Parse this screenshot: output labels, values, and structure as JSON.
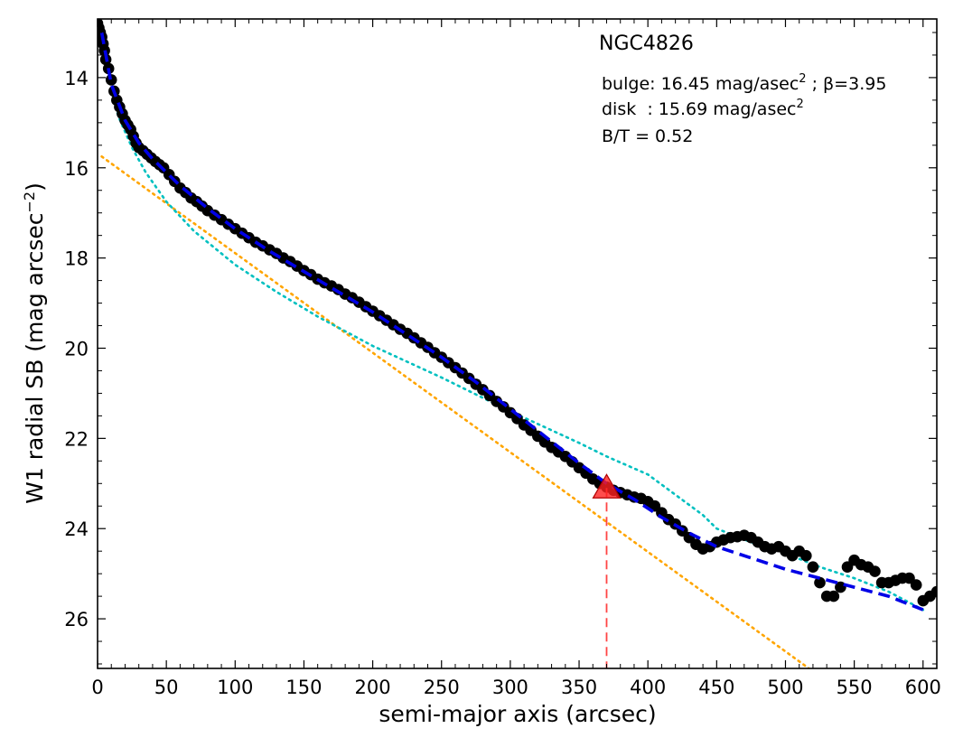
{
  "chart_data": {
    "type": "scatter",
    "title": "NGC4826",
    "xlabel": "semi-major axis (arcsec)",
    "ylabel_main": "W1 radial SB (mag arcsec",
    "ylabel_sup": "−2",
    "ylabel_close": ")",
    "xlim": [
      0,
      610
    ],
    "ylim": [
      27.1,
      12.7
    ],
    "y_inverted": true,
    "xticks": [
      0,
      50,
      100,
      150,
      200,
      250,
      300,
      350,
      400,
      450,
      500,
      550,
      600
    ],
    "yticks": [
      14,
      16,
      18,
      20,
      22,
      24,
      26
    ],
    "annotations": {
      "bulge_prefix": "bulge: 16.45 mag/asec",
      "bulge_sup": "2",
      "bulge_beta": " ; β=3.95",
      "disk_prefix": "disk  : 15.69 mag/asec",
      "disk_sup": "2",
      "bt": "B/T = 0.52"
    },
    "colors": {
      "data": "#000000",
      "total_model": "#0000e6",
      "bulge_model": "#00c0c0",
      "disk_model": "#ffa500",
      "marker": "#ff2020",
      "marker_line": "#ff4444"
    },
    "series": [
      {
        "role": "data",
        "style": "black-dots",
        "points": [
          [
            0,
            12.8
          ],
          [
            1,
            12.9
          ],
          [
            2,
            13.0
          ],
          [
            3,
            13.1
          ],
          [
            4,
            13.25
          ],
          [
            5,
            13.4
          ],
          [
            6,
            13.6
          ],
          [
            8,
            13.8
          ],
          [
            10,
            14.05
          ],
          [
            12,
            14.3
          ],
          [
            14,
            14.5
          ],
          [
            16,
            14.65
          ],
          [
            18,
            14.8
          ],
          [
            20,
            14.95
          ],
          [
            22,
            15.05
          ],
          [
            24,
            15.15
          ],
          [
            26,
            15.3
          ],
          [
            28,
            15.45
          ],
          [
            30,
            15.55
          ],
          [
            33,
            15.62
          ],
          [
            36,
            15.7
          ],
          [
            39,
            15.78
          ],
          [
            42,
            15.86
          ],
          [
            45,
            15.93
          ],
          [
            48,
            16.0
          ],
          [
            52,
            16.15
          ],
          [
            56,
            16.3
          ],
          [
            60,
            16.45
          ],
          [
            64,
            16.55
          ],
          [
            68,
            16.67
          ],
          [
            72,
            16.75
          ],
          [
            76,
            16.85
          ],
          [
            80,
            16.95
          ],
          [
            85,
            17.05
          ],
          [
            90,
            17.15
          ],
          [
            95,
            17.25
          ],
          [
            100,
            17.35
          ],
          [
            105,
            17.45
          ],
          [
            110,
            17.55
          ],
          [
            115,
            17.65
          ],
          [
            120,
            17.73
          ],
          [
            125,
            17.82
          ],
          [
            130,
            17.9
          ],
          [
            135,
            18.0
          ],
          [
            140,
            18.08
          ],
          [
            145,
            18.18
          ],
          [
            150,
            18.28
          ],
          [
            155,
            18.37
          ],
          [
            160,
            18.47
          ],
          [
            165,
            18.55
          ],
          [
            170,
            18.62
          ],
          [
            175,
            18.7
          ],
          [
            180,
            18.8
          ],
          [
            185,
            18.88
          ],
          [
            190,
            18.98
          ],
          [
            195,
            19.08
          ],
          [
            200,
            19.18
          ],
          [
            205,
            19.28
          ],
          [
            210,
            19.38
          ],
          [
            215,
            19.48
          ],
          [
            220,
            19.58
          ],
          [
            225,
            19.67
          ],
          [
            230,
            19.77
          ],
          [
            235,
            19.88
          ],
          [
            240,
            19.98
          ],
          [
            245,
            20.1
          ],
          [
            250,
            20.2
          ],
          [
            255,
            20.32
          ],
          [
            260,
            20.43
          ],
          [
            265,
            20.55
          ],
          [
            270,
            20.67
          ],
          [
            275,
            20.8
          ],
          [
            280,
            20.92
          ],
          [
            285,
            21.05
          ],
          [
            290,
            21.18
          ],
          [
            295,
            21.3
          ],
          [
            300,
            21.43
          ],
          [
            305,
            21.56
          ],
          [
            310,
            21.7
          ],
          [
            315,
            21.82
          ],
          [
            320,
            21.95
          ],
          [
            325,
            22.08
          ],
          [
            330,
            22.2
          ],
          [
            335,
            22.3
          ],
          [
            340,
            22.4
          ],
          [
            345,
            22.52
          ],
          [
            350,
            22.65
          ],
          [
            355,
            22.77
          ],
          [
            360,
            22.9
          ],
          [
            365,
            23.0
          ],
          [
            370,
            23.08
          ],
          [
            375,
            23.15
          ],
          [
            380,
            23.2
          ],
          [
            385,
            23.25
          ],
          [
            390,
            23.3
          ],
          [
            395,
            23.33
          ],
          [
            400,
            23.4
          ],
          [
            405,
            23.5
          ],
          [
            410,
            23.65
          ],
          [
            415,
            23.8
          ],
          [
            420,
            23.9
          ],
          [
            425,
            24.05
          ],
          [
            430,
            24.2
          ],
          [
            435,
            24.35
          ],
          [
            440,
            24.45
          ],
          [
            445,
            24.4
          ],
          [
            450,
            24.3
          ],
          [
            455,
            24.25
          ],
          [
            460,
            24.2
          ],
          [
            465,
            24.18
          ],
          [
            470,
            24.15
          ],
          [
            475,
            24.2
          ],
          [
            480,
            24.3
          ],
          [
            485,
            24.4
          ],
          [
            490,
            24.45
          ],
          [
            495,
            24.4
          ],
          [
            500,
            24.5
          ],
          [
            505,
            24.6
          ],
          [
            510,
            24.5
          ],
          [
            515,
            24.6
          ],
          [
            520,
            24.85
          ],
          [
            525,
            25.2
          ],
          [
            530,
            25.5
          ],
          [
            535,
            25.5
          ],
          [
            540,
            25.3
          ],
          [
            545,
            24.85
          ],
          [
            550,
            24.7
          ],
          [
            555,
            24.8
          ],
          [
            560,
            24.85
          ],
          [
            565,
            24.95
          ],
          [
            570,
            25.2
          ],
          [
            575,
            25.2
          ],
          [
            580,
            25.15
          ],
          [
            585,
            25.1
          ],
          [
            590,
            25.1
          ],
          [
            595,
            25.25
          ],
          [
            600,
            25.6
          ],
          [
            605,
            25.5
          ],
          [
            610,
            25.4
          ]
        ]
      },
      {
        "role": "total-model",
        "style": "blue-dashed",
        "points": [
          [
            3,
            13.0
          ],
          [
            10,
            14.15
          ],
          [
            20,
            14.95
          ],
          [
            30,
            15.45
          ],
          [
            40,
            15.8
          ],
          [
            50,
            16.1
          ],
          [
            60,
            16.4
          ],
          [
            80,
            16.9
          ],
          [
            100,
            17.35
          ],
          [
            125,
            17.85
          ],
          [
            150,
            18.3
          ],
          [
            175,
            18.75
          ],
          [
            200,
            19.2
          ],
          [
            225,
            19.7
          ],
          [
            250,
            20.2
          ],
          [
            275,
            20.75
          ],
          [
            300,
            21.35
          ],
          [
            325,
            21.95
          ],
          [
            350,
            22.55
          ],
          [
            370,
            23.0
          ],
          [
            390,
            23.35
          ],
          [
            410,
            23.75
          ],
          [
            430,
            24.1
          ],
          [
            450,
            24.4
          ],
          [
            475,
            24.65
          ],
          [
            500,
            24.9
          ],
          [
            525,
            25.1
          ],
          [
            550,
            25.3
          ],
          [
            575,
            25.5
          ],
          [
            600,
            25.8
          ]
        ]
      },
      {
        "role": "bulge-model",
        "style": "cyan-dotted",
        "points": [
          [
            3,
            13.0
          ],
          [
            8,
            14.0
          ],
          [
            15,
            14.85
          ],
          [
            25,
            15.55
          ],
          [
            35,
            16.1
          ],
          [
            50,
            16.75
          ],
          [
            70,
            17.4
          ],
          [
            100,
            18.15
          ],
          [
            130,
            18.75
          ],
          [
            160,
            19.3
          ],
          [
            200,
            19.95
          ],
          [
            250,
            20.65
          ],
          [
            300,
            21.4
          ],
          [
            350,
            22.1
          ],
          [
            370,
            22.4
          ],
          [
            400,
            22.8
          ],
          [
            440,
            23.7
          ],
          [
            450,
            24.0
          ],
          [
            475,
            24.3
          ],
          [
            500,
            24.55
          ],
          [
            525,
            24.85
          ],
          [
            550,
            25.1
          ],
          [
            575,
            25.4
          ],
          [
            600,
            25.8
          ]
        ]
      },
      {
        "role": "disk-model",
        "style": "orange-dotted",
        "points": [
          [
            3,
            15.75
          ],
          [
            517,
            27.1
          ]
        ]
      }
    ],
    "marker": {
      "x": 370,
      "y": 23.1,
      "shape": "triangle"
    },
    "marker_line": {
      "x": 370,
      "y_from": 23.1,
      "y_to": 27.1
    }
  }
}
